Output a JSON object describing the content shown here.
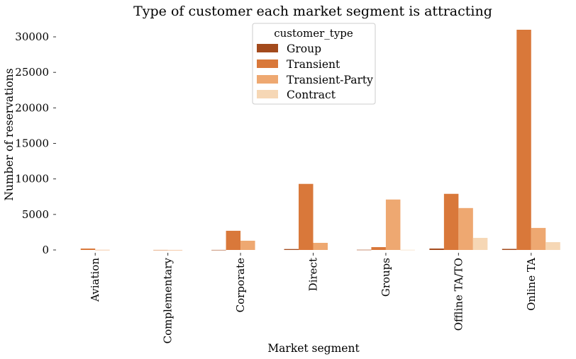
{
  "chart_data": {
    "type": "bar",
    "title": "Type of customer each market segment is attracting",
    "xlabel": "Market segment",
    "ylabel": "Number of reservations",
    "categories": [
      "Aviation",
      "Complementary",
      "Corporate",
      "Direct",
      "Groups",
      "Offline TA/TO",
      "Online TA"
    ],
    "series": [
      {
        "name": "Group",
        "color": "#a34a1c",
        "values": [
          0,
          0,
          10,
          130,
          30,
          200,
          150
        ]
      },
      {
        "name": "Transient",
        "color": "#d9783a",
        "values": [
          200,
          10,
          2700,
          9300,
          400,
          7900,
          31000
        ]
      },
      {
        "name": "Transient-Party",
        "color": "#eea871",
        "values": [
          20,
          5,
          1300,
          1000,
          7100,
          5900,
          3100
        ]
      },
      {
        "name": "Contract",
        "color": "#f6d7b5",
        "values": [
          0,
          0,
          0,
          0,
          20,
          1700,
          1100
        ]
      }
    ],
    "ylim": [
      0,
      31000
    ],
    "yticks": [
      0,
      5000,
      10000,
      15000,
      20000,
      25000,
      30000
    ],
    "legend": {
      "title": "customer_type",
      "placement": "top-center"
    },
    "grid": false
  }
}
